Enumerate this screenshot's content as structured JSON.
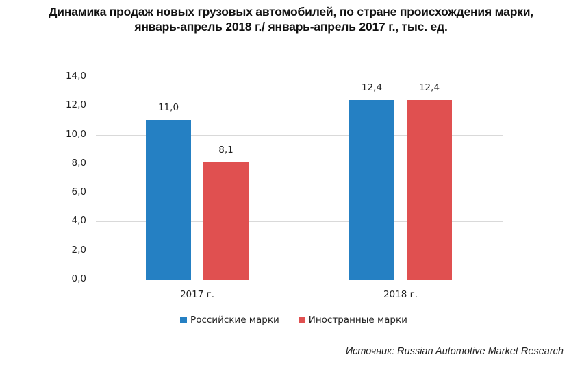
{
  "chart_data": {
    "type": "bar",
    "title": "Динамика продаж новых грузовых автомобилей, по стране происхождения марки, январь-апрель 2018 г./ январь-апрель 2017 г., тыс. ед.",
    "title_lines": [
      "Динамика продаж новых грузовых автомобилей, по стране происхождения марки,",
      "январь-апрель 2018 г./ январь-апрель 2017 г., тыс. ед."
    ],
    "categories": [
      "2017 г.",
      "2018 г."
    ],
    "series": [
      {
        "name": "Российские марки",
        "color": "#2580c3",
        "values": [
          11.0,
          12.4
        ],
        "labels": [
          "11,0",
          "12,4"
        ]
      },
      {
        "name": "Иностранные марки",
        "color": "#e05050",
        "values": [
          8.1,
          12.4
        ],
        "labels": [
          "8,1",
          "12,4"
        ]
      }
    ],
    "xlabel": "",
    "ylabel": "",
    "ylim": [
      0,
      14
    ],
    "yticks": [
      "0,0",
      "2,0",
      "4,0",
      "6,0",
      "8,0",
      "10,0",
      "12,0",
      "14,0"
    ],
    "grid": true,
    "legend_position": "bottom",
    "source": "Источник: Russian Automotive Market Research"
  }
}
